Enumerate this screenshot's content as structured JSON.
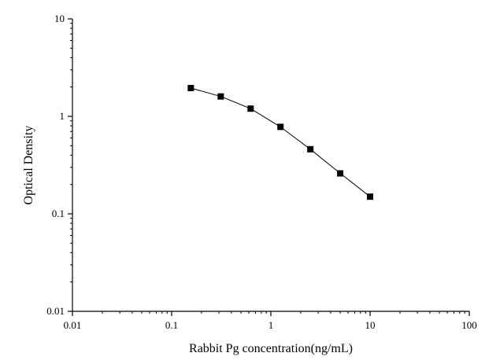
{
  "chart_data": {
    "type": "line",
    "xlabel": "Rabbit Pg concentration(ng/mL)",
    "ylabel": "Optical Density",
    "x_scale": "log",
    "y_scale": "log",
    "xlim": [
      0.01,
      100
    ],
    "ylim": [
      0.01,
      10
    ],
    "x_ticks": [
      "0.01",
      "0.1",
      "1",
      "10",
      "100"
    ],
    "y_ticks": [
      "0.01",
      "0.1",
      "1",
      "10"
    ],
    "grid": false,
    "series": [
      {
        "x": [
          0.156,
          0.3125,
          0.625,
          1.25,
          2.5,
          5,
          10
        ],
        "y": [
          1.95,
          1.6,
          1.2,
          0.78,
          0.46,
          0.26,
          0.15
        ],
        "marker": "square",
        "color": "#000000"
      }
    ]
  }
}
